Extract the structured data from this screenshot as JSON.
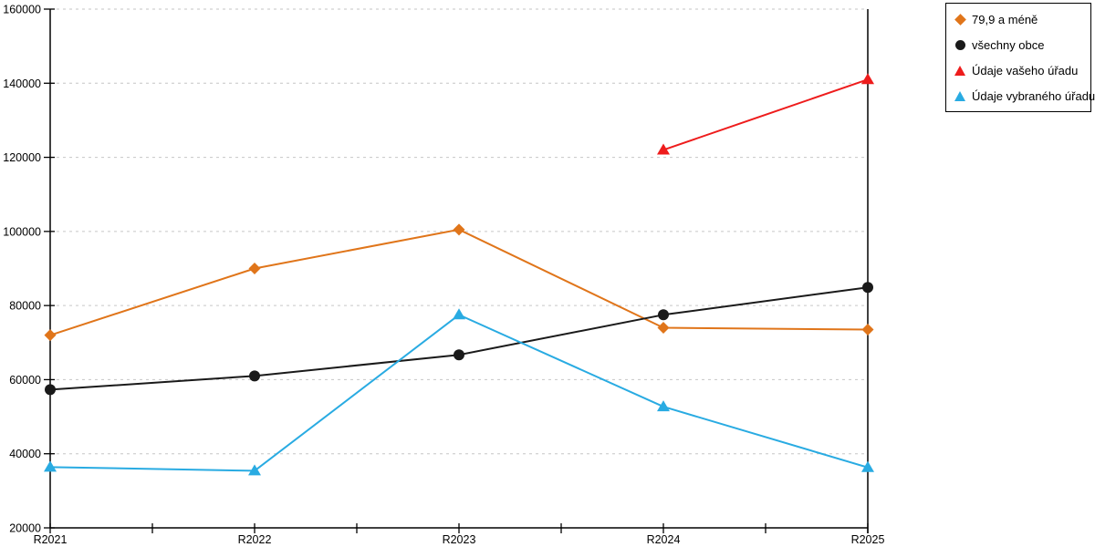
{
  "chart_data": {
    "type": "line",
    "title": "",
    "xlabel": "",
    "ylabel": "",
    "categories": [
      "R2021",
      "R2022",
      "R2023",
      "R2024",
      "R2025"
    ],
    "series": [
      {
        "name": "79,9 a méně",
        "color": "#e0751a",
        "marker": "diamond",
        "values": [
          72000,
          90000,
          100500,
          74000,
          73500
        ]
      },
      {
        "name": "všechny obce",
        "color": "#1a1a1a",
        "marker": "circle",
        "values": [
          57300,
          61000,
          66700,
          77500,
          84900
        ]
      },
      {
        "name": "Údaje vašeho úřadu",
        "color": "#ee1c1c",
        "marker": "triangle",
        "values": [
          null,
          null,
          null,
          122000,
          141000
        ]
      },
      {
        "name": "Údaje vybraného úřadu",
        "color": "#29abe2",
        "marker": "triangle",
        "values": [
          36400,
          35400,
          77500,
          52700,
          36300
        ]
      }
    ],
    "ylim": [
      20000,
      160000
    ],
    "ytick_interval": 20000,
    "ytick_labels": [
      "20000",
      "40000",
      "60000",
      "80000",
      "100000",
      "120000",
      "140000",
      "160000"
    ],
    "grid": "horizontal-dashed",
    "gridline_color": "#c6c6c6",
    "axis_color": "#000000",
    "legend_position": "top-right",
    "legend_border_color": "#000000"
  }
}
